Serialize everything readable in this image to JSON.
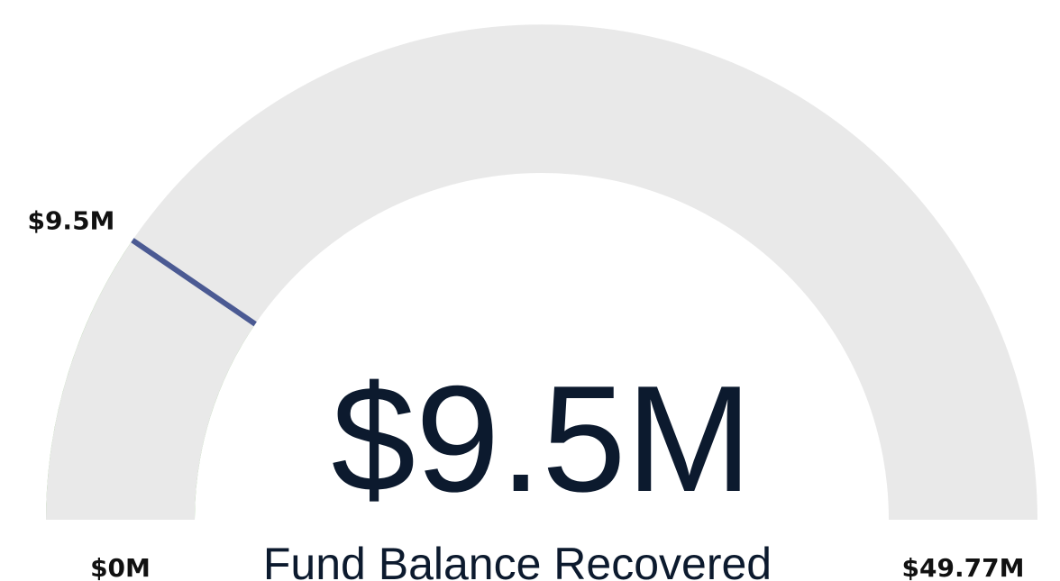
{
  "chart_data": {
    "type": "gauge",
    "title": "Fund Balance Recovered",
    "values": [
      9.5
    ],
    "value_labels": [
      "$9.5M"
    ],
    "target": 9.5,
    "target_label": "$9.5M",
    "ylim": [
      0,
      49.77
    ],
    "yticks": [
      {
        "value": 0,
        "label": "$0M"
      },
      {
        "value": 49.77,
        "label": "$49.77M"
      }
    ],
    "color": "#76b85e",
    "track_color": "#e9e9e9",
    "target_color": "#4b5a93"
  }
}
